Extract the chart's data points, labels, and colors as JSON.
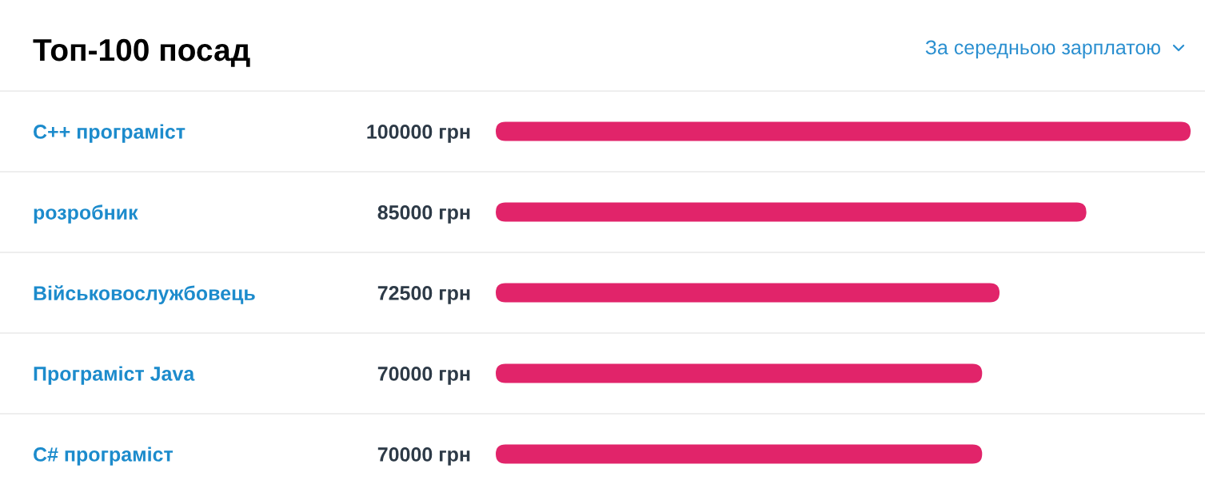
{
  "chart_data": {
    "type": "bar",
    "orientation": "horizontal",
    "title": "Топ-100 посад",
    "annotations": [
      "За середньою зарплатою"
    ],
    "categories": [
      "C++ програміст",
      "розробник",
      "Військовослужбовець",
      "Програміст Java",
      "C# програміст"
    ],
    "series": [
      {
        "color": "#e1246a",
        "values": [
          100000,
          85000,
          72500,
          70000,
          70000
        ],
        "value_labels": [
          "100000 грн",
          "85000 грн",
          "72500 грн",
          "70000 грн",
          "70000 грн"
        ]
      }
    ],
    "xlim": [
      0,
      100000
    ],
    "grid": "y",
    "tick_labels": "y"
  }
}
